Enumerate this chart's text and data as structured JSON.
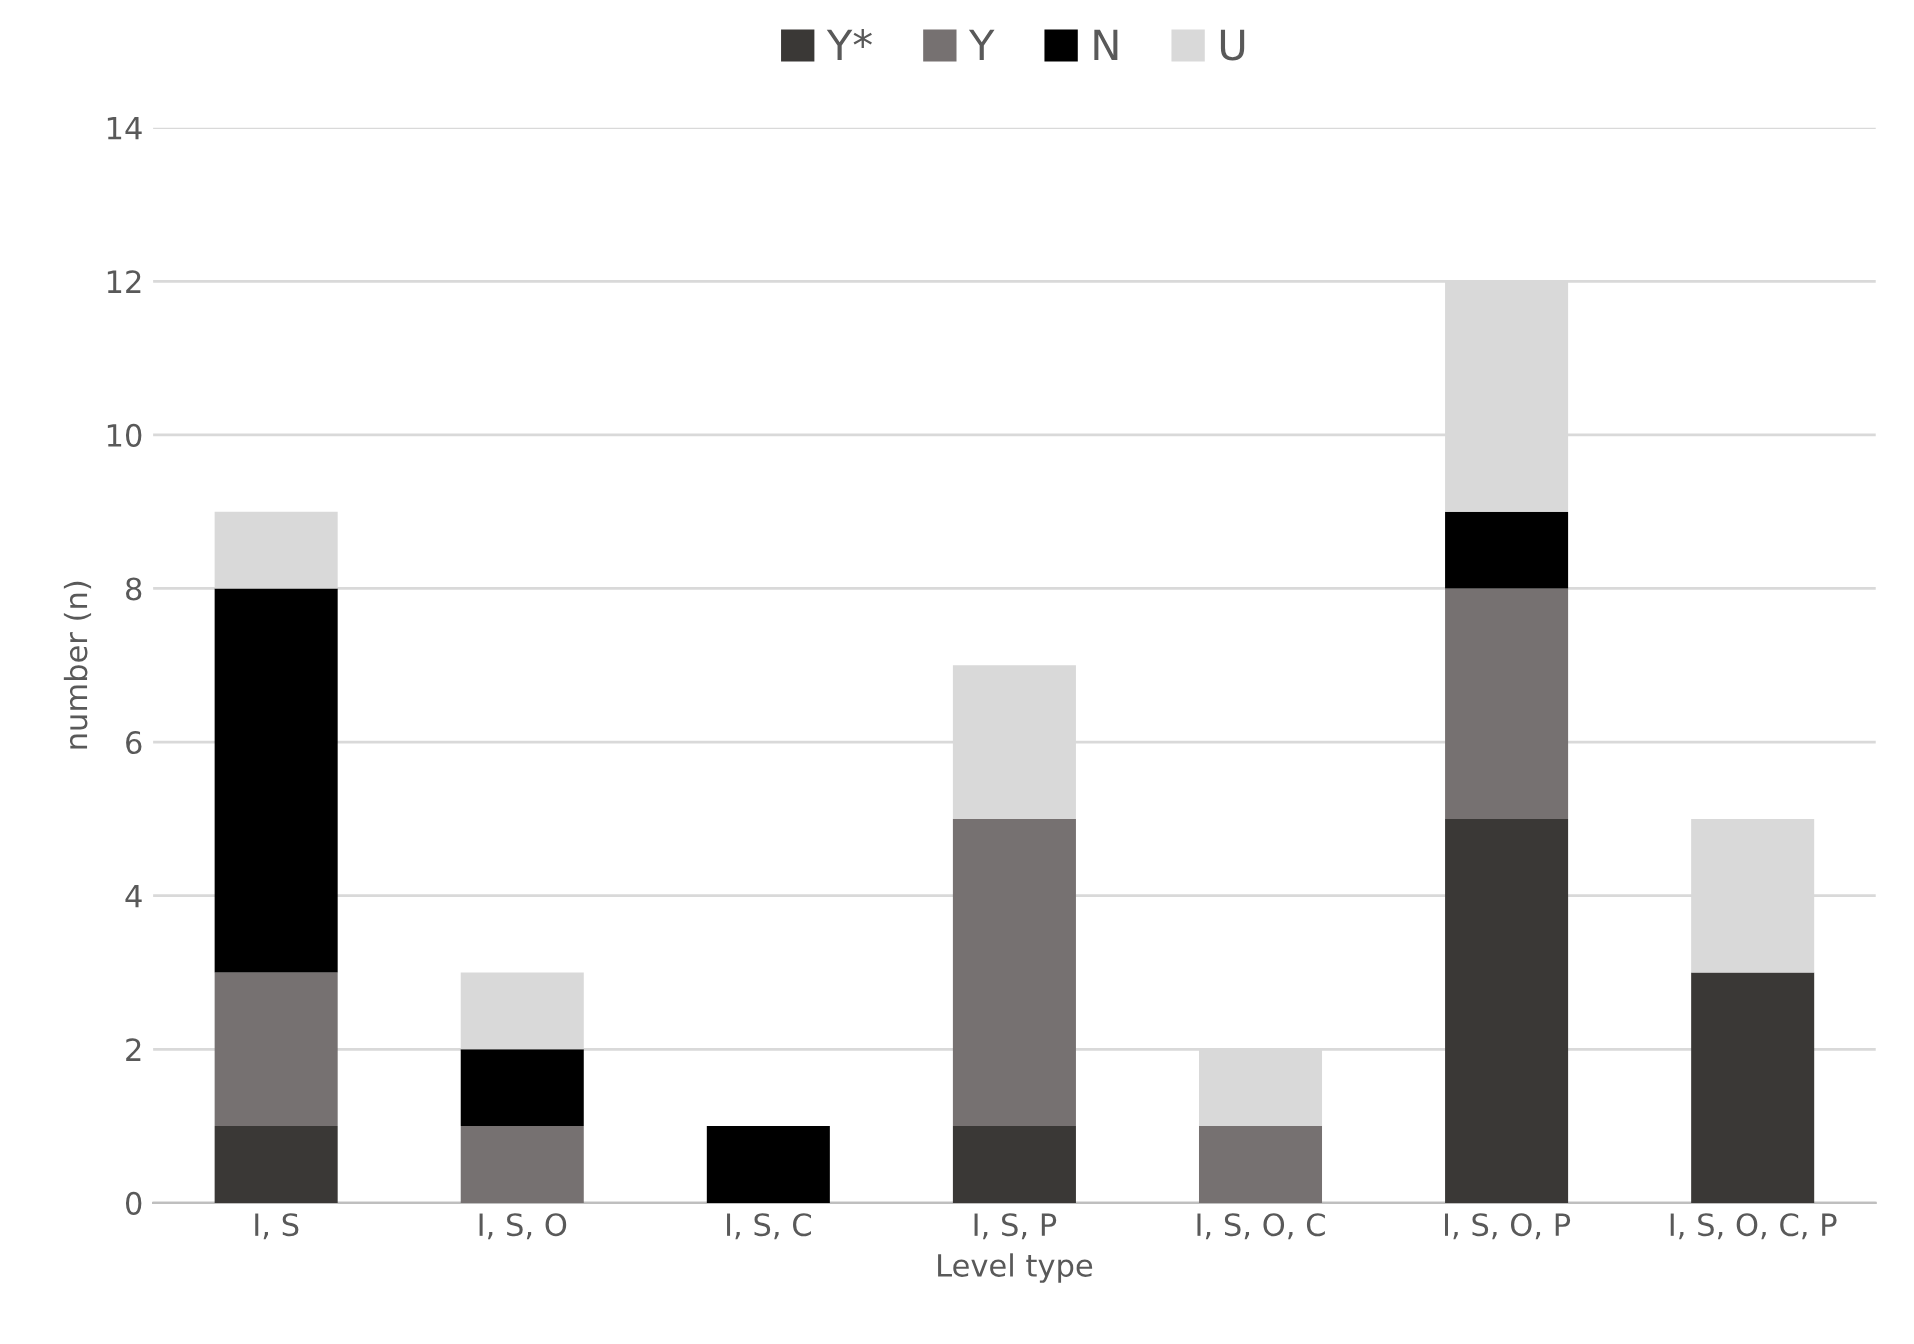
{
  "chart_data": {
    "type": "bar",
    "stacked": true,
    "xlabel": "Level type",
    "ylabel": "number (n)",
    "categories": [
      "I, S",
      "I, S, O",
      "I, S, C",
      "I, S, P",
      "I, S, O, C",
      "I, S, O, P",
      "I, S, O, C, P"
    ],
    "series": [
      {
        "name": "Y*",
        "color": "#3a3836",
        "values": [
          1,
          0,
          0,
          1,
          0,
          5,
          3
        ]
      },
      {
        "name": "Y",
        "color": "#767171",
        "values": [
          2,
          1,
          0,
          4,
          1,
          3,
          0
        ]
      },
      {
        "name": "N",
        "color": "#000000",
        "values": [
          5,
          1,
          1,
          0,
          0,
          1,
          0
        ]
      },
      {
        "name": "U",
        "color": "#d9d9d9",
        "values": [
          1,
          1,
          0,
          2,
          1,
          3,
          2
        ]
      }
    ],
    "ylim": [
      0,
      14
    ],
    "yticks": [
      0,
      2,
      4,
      6,
      8,
      10,
      12,
      14
    ],
    "grid": "y",
    "legend": "top"
  }
}
